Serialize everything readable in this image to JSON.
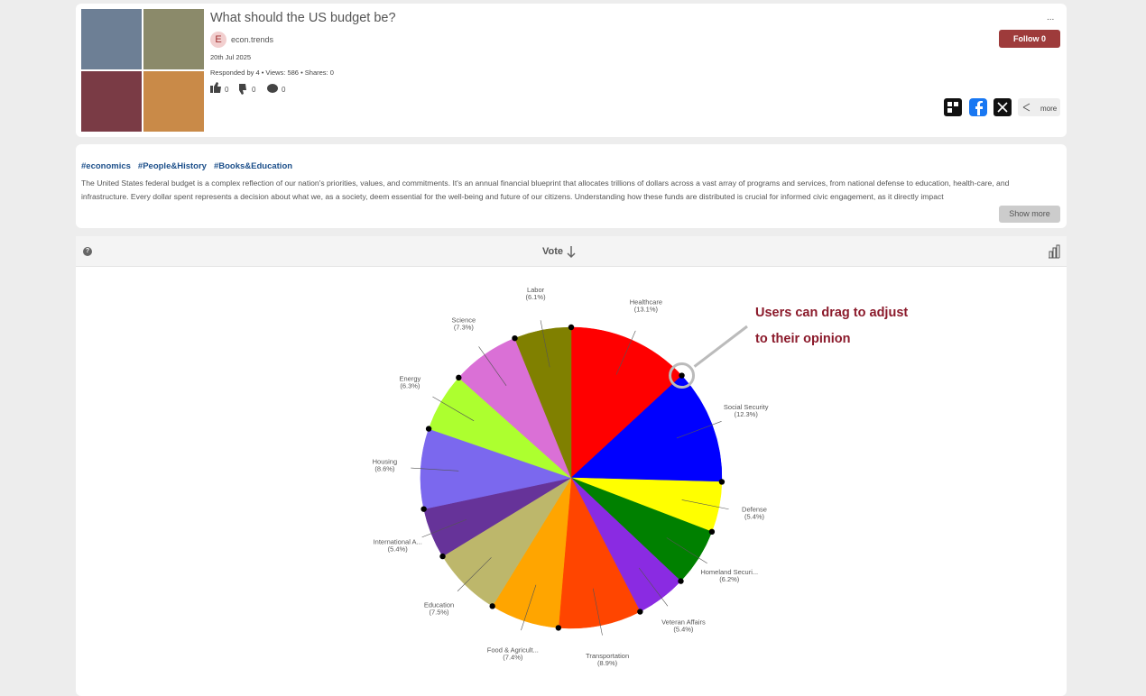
{
  "header": {
    "title": "What should the US budget be?",
    "author_initial": "E",
    "author": "econ.trends",
    "date": "20th Jul 2025",
    "stats": [
      "Responded by 4",
      "Views: 586",
      "Shares: 0"
    ],
    "likes": "0",
    "dislikes": "0",
    "comments": "0",
    "menu": "...",
    "follow": "Follow 0",
    "share_more": "more"
  },
  "description": {
    "tags": [
      "#economics",
      "#People&History",
      "#Books&Education"
    ],
    "text": "The United States federal budget is a complex reflection of our nation's priorities, values, and commitments. It's an annual financial blueprint that allocates trillions of dollars across a vast array of programs and services, from national defense to education, health-care, and infrastructure. Every dollar spent represents a decision about what we, as a society, deem essential for the well-being and future of our citizens. Understanding how these funds are distributed is crucial for informed civic engagement, as it directly impact",
    "show_more": "Show more"
  },
  "toolbar": {
    "help": "?",
    "vote": "Vote"
  },
  "chart_data": {
    "type": "pie",
    "categories": [
      "Healthcare",
      "Social Security",
      "Defense",
      "Homeland Securi...",
      "Veteran Affairs",
      "Transportation",
      "Food & Agricult...",
      "Education",
      "International A...",
      "Housing",
      "Energy",
      "Science",
      "Labor"
    ],
    "values": [
      13.1,
      12.3,
      5.4,
      6.2,
      5.4,
      8.9,
      7.4,
      7.5,
      5.4,
      8.6,
      6.3,
      7.3,
      6.1
    ],
    "value_labels": [
      "(13.1%)",
      "(12.3%)",
      "(5.4%)",
      "(6.2%)",
      "(5.4%)",
      "(8.9%)",
      "(7.4%)",
      "(7.5%)",
      "(5.4%)",
      "(8.6%)",
      "(6.3%)",
      "(7.3%)",
      "(6.1%)"
    ],
    "colors": [
      "#ff0000",
      "#0000ff",
      "#ffff00",
      "#008000",
      "#8a2be2",
      "#ff4500",
      "#ffa500",
      "#bdb76b",
      "#663399",
      "#7b68ee",
      "#adff2f",
      "#da70d6",
      "#808000"
    ],
    "annotation": [
      "Users can drag to adjust",
      "to their opinion"
    ]
  }
}
